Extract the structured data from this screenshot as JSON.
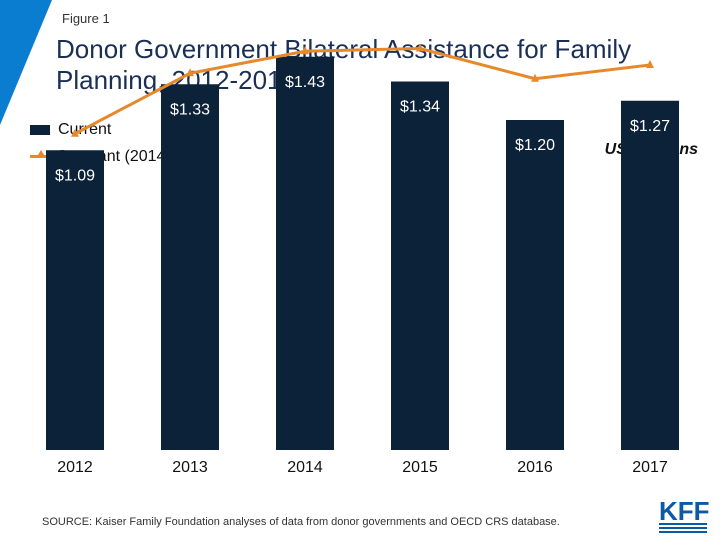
{
  "figure_label": "Figure 1",
  "title": "Donor Government Bilateral Assistance for Family Planning, 2012-2017",
  "units_label": "US$ Billions",
  "source": "SOURCE: Kaiser Family Foundation analyses of data from donor governments and OECD CRS database.",
  "logo_text": "KFF",
  "colors": {
    "bar": "#0c2238",
    "line": "#e6892b",
    "accent": "#0a7dd1"
  },
  "chart_data": {
    "type": "bar",
    "categories": [
      "2012",
      "2013",
      "2014",
      "2015",
      "2016",
      "2017"
    ],
    "series": [
      {
        "name": "Current",
        "type": "bar",
        "values": [
          1.09,
          1.33,
          1.43,
          1.34,
          1.2,
          1.27
        ],
        "labels": [
          "$1.09",
          "$1.33",
          "$1.43",
          "$1.34",
          "$1.20",
          "$1.27"
        ]
      },
      {
        "name": "Constant (2014$)",
        "type": "line",
        "values": [
          1.15,
          1.37,
          1.45,
          1.46,
          1.35,
          1.4
        ]
      }
    ],
    "ylim": [
      0,
      1.6
    ],
    "legend": "top-left",
    "grid": false
  }
}
